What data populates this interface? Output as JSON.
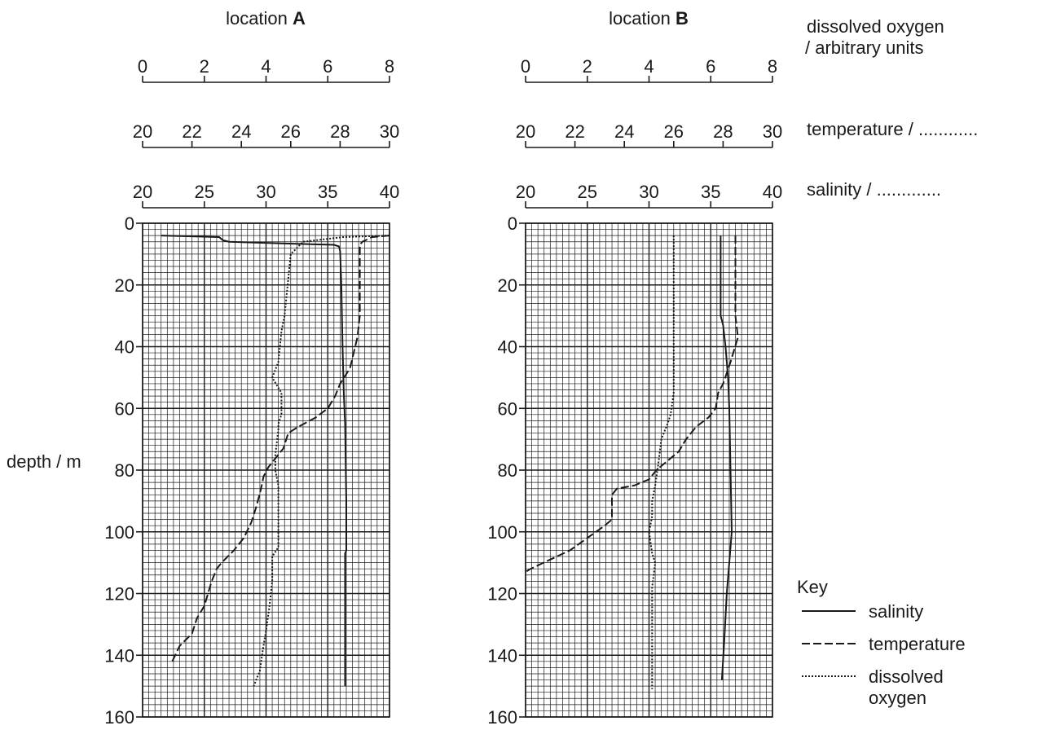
{
  "figure": {
    "depth_label": "depth / m",
    "key": {
      "title": "Key",
      "items": [
        {
          "label": "salinity",
          "series": "salinity"
        },
        {
          "label": "temperature",
          "series": "temperature"
        },
        {
          "label_lines": [
            "dissolved",
            "oxygen"
          ],
          "series": "dissolved oxygen"
        }
      ]
    },
    "axis_titles": {
      "oxygen": [
        "dissolved oxygen",
        "/ arbitrary units"
      ],
      "temperature": "temperature / ............",
      "salinity": "salinity / ............."
    }
  },
  "chart_data": [
    {
      "type": "line",
      "title_prefix": "location ",
      "title_bold": "A",
      "y": {
        "label": "depth / m",
        "range": [
          0,
          160
        ],
        "ticks": [
          0,
          20,
          40,
          60,
          80,
          100,
          120,
          140,
          160
        ],
        "inverted": true
      },
      "top_axes": [
        {
          "key": "oxygen",
          "range": [
            0,
            8
          ],
          "ticks": [
            0,
            2,
            4,
            6,
            8
          ]
        },
        {
          "key": "temperature",
          "range": [
            20,
            30
          ],
          "ticks": [
            20,
            22,
            24,
            26,
            28,
            30
          ]
        },
        {
          "key": "salinity",
          "range": [
            20,
            40
          ],
          "ticks": [
            20,
            25,
            30,
            35,
            40
          ]
        }
      ],
      "grid": true,
      "series": [
        {
          "name": "salinity",
          "axis": "salinity",
          "style": "solid",
          "points": [
            [
              21.5,
              4
            ],
            [
              26.2,
              4.5
            ],
            [
              26.5,
              5.5
            ],
            [
              27,
              6
            ],
            [
              31,
              6.5
            ],
            [
              35.5,
              7
            ],
            [
              35.9,
              7.5
            ],
            [
              36,
              9
            ],
            [
              36.1,
              20
            ],
            [
              36.2,
              40
            ],
            [
              36.3,
              55
            ],
            [
              36.4,
              65
            ],
            [
              36.5,
              90
            ],
            [
              36.5,
              106
            ],
            [
              36.4,
              107
            ],
            [
              36.4,
              150
            ]
          ]
        },
        {
          "name": "temperature",
          "axis": "temperature",
          "style": "dashed",
          "points": [
            [
              30,
              4
            ],
            [
              29.3,
              4.5
            ],
            [
              28.9,
              6
            ],
            [
              28.8,
              7
            ],
            [
              28.8,
              20
            ],
            [
              28.8,
              30
            ],
            [
              28.7,
              37
            ],
            [
              28.4,
              47
            ],
            [
              28.0,
              52
            ],
            [
              27.8,
              56
            ],
            [
              27.5,
              60
            ],
            [
              27.0,
              63
            ],
            [
              26.3,
              66
            ],
            [
              25.9,
              68
            ],
            [
              25.7,
              73
            ],
            [
              25.4,
              76
            ],
            [
              25.1,
              79
            ],
            [
              24.9,
              82
            ],
            [
              24.8,
              86
            ],
            [
              24.6,
              92
            ],
            [
              24.4,
              97
            ],
            [
              24.1,
              102
            ],
            [
              23.7,
              106
            ],
            [
              23.2,
              110
            ],
            [
              23.0,
              112
            ],
            [
              22.8,
              116
            ],
            [
              22.5,
              124
            ],
            [
              22.2,
              128
            ],
            [
              22.0,
              133
            ],
            [
              21.5,
              137
            ],
            [
              21.2,
              142
            ]
          ]
        },
        {
          "name": "dissolved oxygen",
          "axis": "oxygen",
          "style": "dotted",
          "points": [
            [
              8,
              4
            ],
            [
              6.5,
              4.5
            ],
            [
              5.2,
              6
            ],
            [
              4.8,
              10
            ],
            [
              4.7,
              20
            ],
            [
              4.6,
              30
            ],
            [
              4.5,
              35
            ],
            [
              4.4,
              45
            ],
            [
              4.2,
              50
            ],
            [
              4.5,
              55
            ],
            [
              4.5,
              62
            ],
            [
              4.4,
              65
            ],
            [
              4.4,
              67
            ],
            [
              4.3,
              75
            ],
            [
              4.3,
              80
            ],
            [
              4.4,
              85
            ],
            [
              4.4,
              95
            ],
            [
              4.4,
              105
            ],
            [
              4.2,
              108
            ],
            [
              4.2,
              116
            ],
            [
              4.1,
              125
            ],
            [
              4.0,
              132
            ],
            [
              3.9,
              138
            ],
            [
              3.8,
              145
            ],
            [
              3.6,
              150
            ]
          ]
        }
      ]
    },
    {
      "type": "line",
      "title_prefix": "location ",
      "title_bold": "B",
      "y": {
        "label": "depth / m",
        "range": [
          0,
          160
        ],
        "ticks": [
          0,
          20,
          40,
          60,
          80,
          100,
          120,
          140,
          160
        ],
        "inverted": true
      },
      "top_axes": [
        {
          "key": "oxygen",
          "range": [
            0,
            8
          ],
          "ticks": [
            0,
            2,
            4,
            6,
            8
          ]
        },
        {
          "key": "temperature",
          "range": [
            20,
            30
          ],
          "ticks": [
            20,
            22,
            24,
            26,
            28,
            30
          ]
        },
        {
          "key": "salinity",
          "range": [
            20,
            40
          ],
          "ticks": [
            20,
            25,
            30,
            35,
            40
          ]
        }
      ],
      "grid": true,
      "series": [
        {
          "name": "salinity",
          "axis": "salinity",
          "style": "solid",
          "points": [
            [
              35.8,
              4
            ],
            [
              35.8,
              30
            ],
            [
              36,
              33
            ],
            [
              36.2,
              40
            ],
            [
              36.4,
              50
            ],
            [
              36.5,
              60
            ],
            [
              36.6,
              80
            ],
            [
              36.7,
              100
            ],
            [
              36.5,
              110
            ],
            [
              36.3,
              120
            ],
            [
              36.1,
              135
            ],
            [
              35.9,
              148
            ]
          ]
        },
        {
          "name": "temperature",
          "axis": "temperature",
          "style": "dashed",
          "points": [
            [
              28.5,
              4
            ],
            [
              28.5,
              20
            ],
            [
              28.5,
              30
            ],
            [
              28.6,
              37
            ],
            [
              28.3,
              45
            ],
            [
              28.0,
              52
            ],
            [
              27.8,
              55
            ],
            [
              27.7,
              60
            ],
            [
              27.4,
              63
            ],
            [
              26.9,
              66
            ],
            [
              26.5,
              70
            ],
            [
              26.2,
              74
            ],
            [
              25.9,
              76
            ],
            [
              25.6,
              78
            ],
            [
              25.3,
              80
            ],
            [
              25.0,
              83
            ],
            [
              24.4,
              85
            ],
            [
              23.7,
              86
            ],
            [
              23.6,
              87
            ],
            [
              23.5,
              88
            ],
            [
              23.5,
              96
            ],
            [
              23.2,
              98
            ],
            [
              22.5,
              102
            ],
            [
              21.8,
              106
            ],
            [
              21.0,
              109
            ],
            [
              20.2,
              112
            ],
            [
              20,
              113
            ]
          ]
        },
        {
          "name": "dissolved oxygen",
          "axis": "oxygen",
          "style": "dotted",
          "points": [
            [
              4.8,
              4
            ],
            [
              4.8,
              20
            ],
            [
              4.8,
              40
            ],
            [
              4.8,
              55
            ],
            [
              4.7,
              62
            ],
            [
              4.6,
              65
            ],
            [
              4.4,
              70
            ],
            [
              4.3,
              78
            ],
            [
              4.2,
              85
            ],
            [
              4.1,
              90
            ],
            [
              4.1,
              95
            ],
            [
              4.0,
              100
            ],
            [
              4.1,
              107
            ],
            [
              4.2,
              110
            ],
            [
              4.1,
              118
            ],
            [
              4.1,
              125
            ],
            [
              4.1,
              140
            ],
            [
              4.1,
              151
            ]
          ]
        }
      ]
    }
  ]
}
